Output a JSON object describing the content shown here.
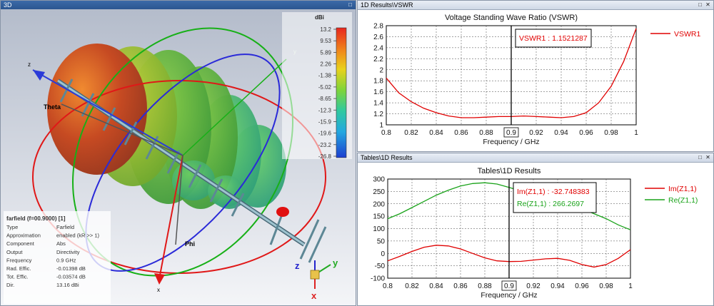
{
  "panes": {
    "view3d_title": "3D",
    "vswr_title": "1D Results\\VSWR",
    "tables_title": "Tables\\1D Results"
  },
  "window_buttons": {
    "maximize": "□",
    "close": "✕"
  },
  "scene": {
    "axis_labels": {
      "z": "z",
      "y": "y",
      "x": "x",
      "theta": "Theta",
      "phi": "Phi"
    },
    "triad": {
      "z": "z",
      "y": "y",
      "x": "x"
    }
  },
  "colorbar": {
    "unit": "dBi",
    "ticks": [
      "13.2",
      "9.53",
      "5.89",
      "2.26",
      "-1.38",
      "-5.02",
      "-8.65",
      "-12.3",
      "-15.9",
      "-19.6",
      "-23.2",
      "-26.8"
    ]
  },
  "info_panel": {
    "title": "farfield (f=00.9000) [1]",
    "rows": [
      {
        "label": "Type",
        "value": "Farfield"
      },
      {
        "label": "Approximation",
        "value": "enabled (kR >> 1)"
      },
      {
        "label": "Component",
        "value": "Abs"
      },
      {
        "label": "Output",
        "value": "Directivity"
      },
      {
        "label": "Frequency",
        "value": "0.9 GHz"
      },
      {
        "label": "Rad. Effic.",
        "value": "-0.01398 dB"
      },
      {
        "label": "Tot. Effic.",
        "value": "-0.03574 dB"
      },
      {
        "label": "Dir.",
        "value": "13.16 dBi"
      }
    ]
  },
  "chart_data": [
    {
      "type": "line",
      "title": "Voltage Standing Wave Ratio (VSWR)",
      "xlabel": "Frequency / GHz",
      "ylabel": "",
      "xlim": [
        0.8,
        1.0
      ],
      "ylim": [
        1.0,
        2.8
      ],
      "x_ticks": [
        "0.8",
        "0.82",
        "0.84",
        "0.86",
        "0.88",
        "0.9",
        "0.92",
        "0.94",
        "0.96",
        "0.98",
        "1"
      ],
      "y_ticks": [
        "1",
        "1.2",
        "1.4",
        "1.6",
        "1.8",
        "2",
        "2.2",
        "2.4",
        "2.6",
        "2.8"
      ],
      "grid": true,
      "legend_position": "right",
      "marker_x": 0.9,
      "marker_x_label": "0.9",
      "marker_readout": [
        "VSWR1 : 1.1521287"
      ],
      "series": [
        {
          "name": "VSWR1",
          "color": "#e00000",
          "x": [
            0.8,
            0.81,
            0.82,
            0.83,
            0.84,
            0.85,
            0.86,
            0.87,
            0.88,
            0.89,
            0.9,
            0.91,
            0.92,
            0.93,
            0.94,
            0.95,
            0.96,
            0.97,
            0.98,
            0.99,
            1.0
          ],
          "values": [
            1.85,
            1.58,
            1.42,
            1.3,
            1.22,
            1.16,
            1.13,
            1.13,
            1.14,
            1.15,
            1.15,
            1.16,
            1.15,
            1.14,
            1.13,
            1.15,
            1.22,
            1.4,
            1.7,
            2.15,
            2.75
          ]
        }
      ]
    },
    {
      "type": "line",
      "title": "Tables\\1D Results",
      "xlabel": "Frequency / GHz",
      "ylabel": "",
      "xlim": [
        0.8,
        1.0
      ],
      "ylim": [
        -100,
        300
      ],
      "x_ticks": [
        "0.8",
        "0.82",
        "0.84",
        "0.86",
        "0.88",
        "0.9",
        "0.92",
        "0.94",
        "0.96",
        "0.98",
        "1"
      ],
      "y_ticks": [
        "-100",
        "-50",
        "0",
        "50",
        "100",
        "150",
        "200",
        "250",
        "300"
      ],
      "grid": true,
      "legend_position": "right",
      "marker_x": 0.9,
      "marker_x_label": "0.9",
      "marker_readout": [
        "Im(Z1,1) : -32.748383",
        "Re(Z1,1) : 266.2697"
      ],
      "series": [
        {
          "name": "Im(Z1,1)",
          "color": "#e00000",
          "x": [
            0.8,
            0.81,
            0.82,
            0.83,
            0.84,
            0.85,
            0.86,
            0.87,
            0.88,
            0.89,
            0.9,
            0.91,
            0.92,
            0.93,
            0.94,
            0.95,
            0.96,
            0.97,
            0.98,
            0.99,
            1.0
          ],
          "values": [
            -30,
            -12,
            8,
            25,
            33,
            30,
            18,
            0,
            -18,
            -30,
            -33,
            -32,
            -27,
            -22,
            -20,
            -28,
            -45,
            -55,
            -45,
            -20,
            15
          ]
        },
        {
          "name": "Re(Z1,1)",
          "color": "#1aa31a",
          "x": [
            0.8,
            0.81,
            0.82,
            0.83,
            0.84,
            0.85,
            0.86,
            0.87,
            0.88,
            0.89,
            0.9,
            0.91,
            0.92,
            0.93,
            0.94,
            0.95,
            0.96,
            0.97,
            0.98,
            0.99,
            1.0
          ],
          "values": [
            140,
            160,
            185,
            210,
            235,
            255,
            272,
            282,
            285,
            280,
            266,
            252,
            240,
            228,
            215,
            200,
            180,
            160,
            140,
            115,
            95
          ]
        }
      ]
    }
  ]
}
